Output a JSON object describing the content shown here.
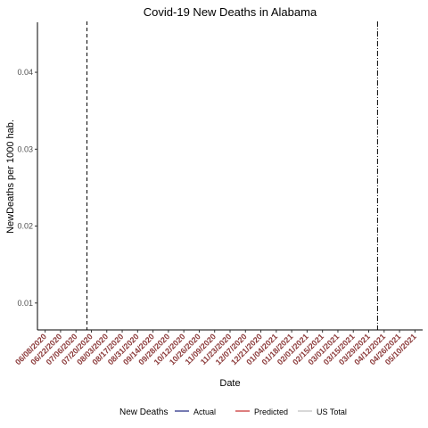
{
  "chart_data": {
    "type": "line",
    "title": "Covid-19  New Deaths  in  Alabama",
    "xlabel": "Date",
    "ylabel": "NewDeaths per 1000 hab.",
    "x_tick_labels": [
      "06/08/2020",
      "06/22/2020",
      "07/06/2020",
      "07/20/2020",
      "08/03/2020",
      "08/17/2020",
      "08/31/2020",
      "09/14/2020",
      "09/28/2020",
      "10/12/2020",
      "10/26/2020",
      "11/09/2020",
      "11/23/2020",
      "12/07/2020",
      "12/21/2020",
      "01/04/2021",
      "01/18/2021",
      "02/01/2021",
      "02/15/2021",
      "03/01/2021",
      "03/15/2021",
      "03/29/2021",
      "04/12/2021",
      "04/26/2021",
      "05/10/2021"
    ],
    "x_tick_color": "#8b3a3a",
    "xlim": [
      "06/01/2020",
      "05/17/2021"
    ],
    "y_ticks": [
      0.01,
      0.02,
      0.03,
      0.04
    ],
    "y_tick_labels": [
      "0.01",
      "0.02",
      "0.03",
      "0.04"
    ],
    "ylim": [
      0.0065,
      0.0465
    ],
    "vlines": [
      {
        "x": "07/16/2020",
        "style": "dashed"
      },
      {
        "x": "04/06/2021",
        "style": "dotdash"
      }
    ],
    "series": [
      {
        "name": "Actual",
        "color": "#1a237e",
        "values": []
      },
      {
        "name": "Predicted",
        "color": "#c62828",
        "values": []
      },
      {
        "name": "US Total",
        "color": "#bdbdbd",
        "values": []
      }
    ],
    "legend": {
      "title": "New Deaths",
      "position": "bottom"
    },
    "grid": false
  }
}
